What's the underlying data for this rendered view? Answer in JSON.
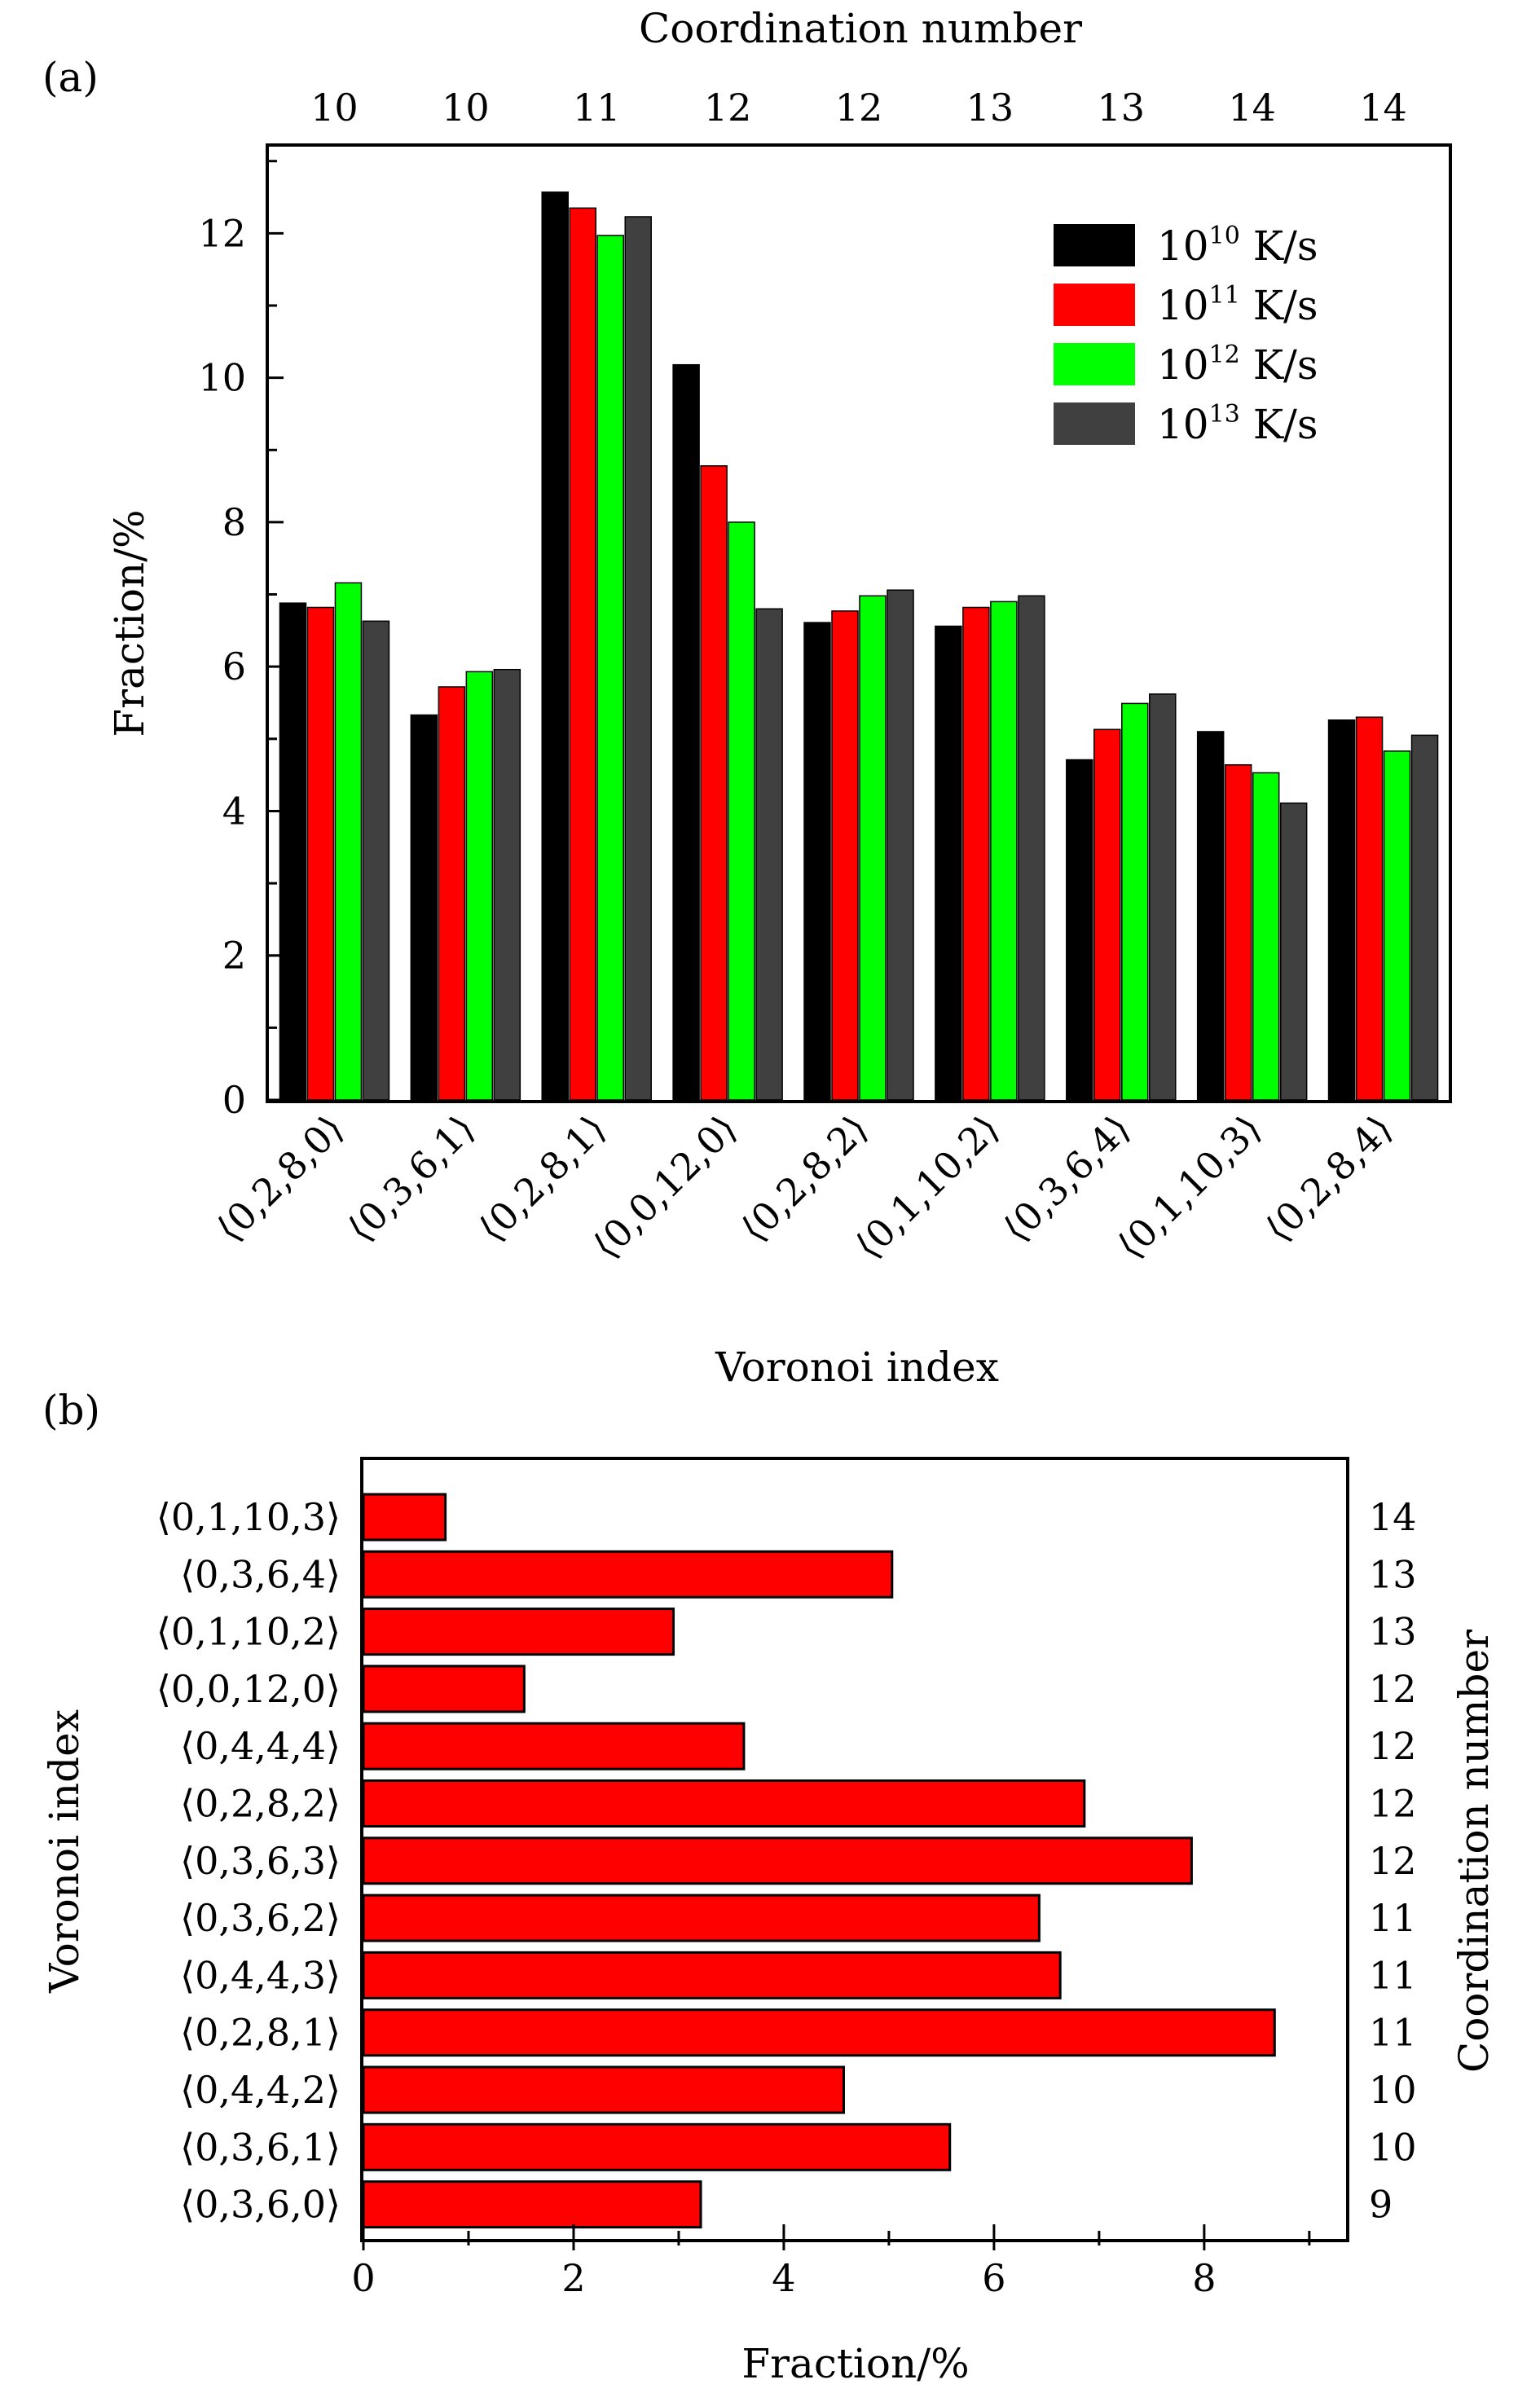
{
  "chart_data": [
    {
      "panel": "(a)",
      "type": "bar",
      "title": "",
      "top_axis_title": "Coordination number",
      "top_tick_labels": [
        "10",
        "10",
        "11",
        "12",
        "12",
        "13",
        "13",
        "14",
        "14"
      ],
      "xlabel": "Voronoi index",
      "ylabel": "Fraction/%",
      "ylim": [
        0,
        13.2
      ],
      "yticks": [
        0,
        2,
        4,
        6,
        8,
        10,
        12
      ],
      "ytick_labels": [
        "0",
        "2",
        "4",
        "6",
        "8",
        "10",
        "12"
      ],
      "categories": [
        "⟨0,2,8,0⟩",
        "⟨0,3,6,1⟩",
        "⟨0,2,8,1⟩",
        "⟨0,0,12,0⟩",
        "⟨0,2,8,2⟩",
        "⟨0,1,10,2⟩",
        "⟨0,3,6,4⟩",
        "⟨0,1,10,3⟩",
        "⟨0,2,8,4⟩"
      ],
      "legend_position": "top-right",
      "legend_unit": "K/s",
      "series": [
        {
          "name": "10^10 K/s",
          "base": "10",
          "exp": "10",
          "color": "#000000",
          "values": [
            6.88,
            5.33,
            12.57,
            10.18,
            6.61,
            6.56,
            4.71,
            5.1,
            5.26
          ]
        },
        {
          "name": "10^11 K/s",
          "base": "10",
          "exp": "11",
          "color": "#ff0000",
          "values": [
            6.82,
            5.72,
            12.35,
            8.78,
            6.77,
            6.82,
            5.13,
            4.64,
            5.3
          ]
        },
        {
          "name": "10^12 K/s",
          "base": "10",
          "exp": "12",
          "color": "#00ff00",
          "values": [
            7.16,
            5.93,
            11.97,
            8.0,
            6.98,
            6.9,
            5.49,
            4.53,
            4.83
          ]
        },
        {
          "name": "10^13 K/s",
          "base": "10",
          "exp": "13",
          "color": "#404040",
          "values": [
            6.63,
            5.96,
            12.23,
            6.8,
            7.06,
            6.98,
            5.62,
            4.11,
            5.05
          ]
        }
      ]
    },
    {
      "panel": "(b)",
      "type": "bar",
      "orientation": "horizontal",
      "title": "",
      "xlabel": "Fraction/%",
      "ylabel": "Voronoi index",
      "right_axis_title": "Coordination number",
      "xlim": [
        0,
        9.35
      ],
      "xticks": [
        0,
        2,
        4,
        6,
        8
      ],
      "xtick_labels": [
        "0",
        "2",
        "4",
        "6",
        "8"
      ],
      "bar_color": "#ff0000",
      "categories": [
        "⟨0,1,10,3⟩",
        "⟨0,3,6,4⟩",
        "⟨0,1,10,2⟩",
        "⟨0,0,12,0⟩",
        "⟨0,4,4,4⟩",
        "⟨0,2,8,2⟩",
        "⟨0,3,6,3⟩",
        "⟨0,3,6,2⟩",
        "⟨0,4,4,3⟩",
        "⟨0,2,8,1⟩",
        "⟨0,4,4,2⟩",
        "⟨0,3,6,1⟩",
        "⟨0,3,6,0⟩"
      ],
      "right_tick_labels": [
        "14",
        "13",
        "13",
        "12",
        "12",
        "12",
        "12",
        "11",
        "11",
        "11",
        "10",
        "10",
        "9"
      ],
      "values": [
        0.78,
        5.03,
        2.95,
        1.53,
        3.62,
        6.86,
        7.88,
        6.43,
        6.63,
        8.67,
        4.57,
        5.58,
        3.21
      ]
    }
  ]
}
